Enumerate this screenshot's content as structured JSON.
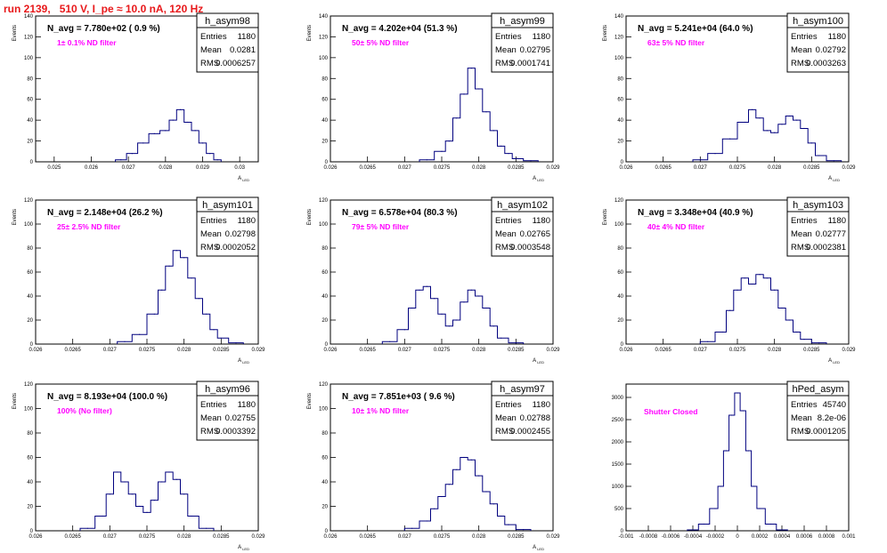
{
  "run_title": "run 2139,   510 V, I_pe ≈ 10.0 nA, 120 Hz",
  "colors": {
    "title": "#e8191b",
    "line": "#00007f",
    "annotation": "#ff00ff",
    "frame": "#000000"
  },
  "chart_data": [
    {
      "type": "histogram",
      "stats_title": "h_asym98",
      "stats": {
        "Entries": "1180",
        "Mean": "0.0281",
        "RMS": "0.0006257"
      },
      "navg_label": "N_avg = 7.780e+02 ( 0.9 %)",
      "filter_label": "1± 0.1% ND filter",
      "xlabel": "A",
      "xlabel_sub": "LED",
      "ylabel": "Events",
      "xlim": [
        0.0245,
        0.0305
      ],
      "ylim": [
        0,
        140
      ],
      "xticks": [
        "0.025",
        "0.026",
        "0.027",
        "0.028",
        "0.029",
        "0.03"
      ],
      "xtick_values": [
        0.025,
        0.026,
        0.027,
        0.028,
        0.029,
        0.03
      ],
      "yticks": [
        "0",
        "20",
        "40",
        "60",
        "80",
        "100",
        "120",
        "140"
      ],
      "ytick_values": [
        0,
        20,
        40,
        60,
        80,
        100,
        120,
        140
      ],
      "x": [
        0.0268,
        0.0271,
        0.0274,
        0.0277,
        0.028,
        0.0282,
        0.0284,
        0.0286,
        0.0288,
        0.029,
        0.0292,
        0.0294
      ],
      "y": [
        2,
        8,
        18,
        27,
        30,
        40,
        50,
        38,
        30,
        18,
        8,
        2
      ]
    },
    {
      "type": "histogram",
      "stats_title": "h_asym99",
      "stats": {
        "Entries": "1180",
        "Mean": "0.02795",
        "RMS": "0.0001741"
      },
      "navg_label": "N_avg = 4.202e+04 (51.3 %)",
      "filter_label": "50± 5% ND filter",
      "xlabel": "A",
      "xlabel_sub": "LED",
      "ylabel": "Events",
      "xlim": [
        0.026,
        0.029
      ],
      "ylim": [
        0,
        140
      ],
      "xticks": [
        "0.026",
        "0.0265",
        "0.027",
        "0.0275",
        "0.028",
        "0.0285",
        "0.029"
      ],
      "xtick_values": [
        0.026,
        0.0265,
        0.027,
        0.0275,
        0.028,
        0.0285,
        0.029
      ],
      "yticks": [
        "0",
        "20",
        "40",
        "60",
        "80",
        "100",
        "120",
        "140"
      ],
      "ytick_values": [
        0,
        20,
        40,
        60,
        80,
        100,
        120,
        140
      ],
      "x": [
        0.0273,
        0.0275,
        0.0276,
        0.0277,
        0.0278,
        0.0279,
        0.028,
        0.0281,
        0.0282,
        0.0283,
        0.0284,
        0.0285,
        0.0287
      ],
      "y": [
        2,
        10,
        20,
        42,
        65,
        90,
        70,
        48,
        30,
        15,
        8,
        3,
        1
      ]
    },
    {
      "type": "histogram",
      "stats_title": "h_asym100",
      "stats": {
        "Entries": "1180",
        "Mean": "0.02792",
        "RMS": "0.0003263"
      },
      "navg_label": "N_avg = 5.241e+04 (64.0 %)",
      "filter_label": "63± 5% ND filter",
      "xlabel": "A",
      "xlabel_sub": "LED",
      "ylabel": "Events",
      "xlim": [
        0.026,
        0.029
      ],
      "ylim": [
        0,
        140
      ],
      "xticks": [
        "0.026",
        "0.0265",
        "0.027",
        "0.0275",
        "0.028",
        "0.0285",
        "0.029"
      ],
      "xtick_values": [
        0.026,
        0.0265,
        0.027,
        0.0275,
        0.028,
        0.0285,
        0.029
      ],
      "yticks": [
        "0",
        "20",
        "40",
        "60",
        "80",
        "100",
        "120",
        "140"
      ],
      "ytick_values": [
        0,
        20,
        40,
        60,
        80,
        100,
        120,
        140
      ],
      "x": [
        0.027,
        0.0272,
        0.0274,
        0.0276,
        0.0277,
        0.0278,
        0.0279,
        0.028,
        0.0281,
        0.0282,
        0.0283,
        0.0284,
        0.0285,
        0.0286,
        0.0288
      ],
      "y": [
        2,
        8,
        22,
        38,
        50,
        42,
        30,
        28,
        36,
        44,
        40,
        32,
        18,
        6,
        1
      ]
    },
    {
      "type": "histogram",
      "stats_title": "h_asym101",
      "stats": {
        "Entries": "1180",
        "Mean": "0.02798",
        "RMS": "0.0002052"
      },
      "navg_label": "N_avg = 2.148e+04 (26.2 %)",
      "filter_label": "25± 2.5% ND filter",
      "xlabel": "A",
      "xlabel_sub": "LED",
      "ylabel": "Events",
      "xlim": [
        0.026,
        0.029
      ],
      "ylim": [
        0,
        120
      ],
      "xticks": [
        "0.026",
        "0.0265",
        "0.027",
        "0.0275",
        "0.028",
        "0.0285",
        "0.029"
      ],
      "xtick_values": [
        0.026,
        0.0265,
        0.027,
        0.0275,
        0.028,
        0.0285,
        0.029
      ],
      "yticks": [
        "0",
        "20",
        "40",
        "60",
        "80",
        "100",
        "120"
      ],
      "ytick_values": [
        0,
        20,
        40,
        60,
        80,
        100,
        120
      ],
      "x": [
        0.0272,
        0.0274,
        0.0276,
        0.0277,
        0.0278,
        0.0279,
        0.028,
        0.0281,
        0.0282,
        0.0283,
        0.0284,
        0.0285,
        0.0287
      ],
      "y": [
        2,
        8,
        25,
        45,
        65,
        78,
        72,
        55,
        38,
        25,
        12,
        5,
        1
      ]
    },
    {
      "type": "histogram",
      "stats_title": "h_asym102",
      "stats": {
        "Entries": "1180",
        "Mean": "0.02765",
        "RMS": "0.0003548"
      },
      "navg_label": "N_avg = 6.578e+04 (80.3 %)",
      "filter_label": "79± 5% ND filter",
      "xlabel": "A",
      "xlabel_sub": "LED",
      "ylabel": "Events",
      "xlim": [
        0.026,
        0.029
      ],
      "ylim": [
        0,
        120
      ],
      "xticks": [
        "0.026",
        "0.0265",
        "0.027",
        "0.0275",
        "0.028",
        "0.0285",
        "0.029"
      ],
      "xtick_values": [
        0.026,
        0.0265,
        0.027,
        0.0275,
        0.028,
        0.0285,
        0.029
      ],
      "yticks": [
        "0",
        "20",
        "40",
        "60",
        "80",
        "100",
        "120"
      ],
      "ytick_values": [
        0,
        20,
        40,
        60,
        80,
        100,
        120
      ],
      "x": [
        0.0268,
        0.027,
        0.0271,
        0.0272,
        0.0273,
        0.0274,
        0.0275,
        0.0276,
        0.0277,
        0.0278,
        0.0279,
        0.028,
        0.0281,
        0.0282,
        0.0283,
        0.0285
      ],
      "y": [
        2,
        12,
        30,
        45,
        48,
        38,
        25,
        15,
        20,
        35,
        45,
        40,
        30,
        15,
        5,
        1
      ]
    },
    {
      "type": "histogram",
      "stats_title": "h_asym103",
      "stats": {
        "Entries": "1180",
        "Mean": "0.02777",
        "RMS": "0.0002381"
      },
      "navg_label": "N_avg = 3.348e+04 (40.9 %)",
      "filter_label": "40± 4% ND filter",
      "xlabel": "A",
      "xlabel_sub": "LED",
      "ylabel": "Events",
      "xlim": [
        0.026,
        0.029
      ],
      "ylim": [
        0,
        120
      ],
      "xticks": [
        "0.026",
        "0.0265",
        "0.027",
        "0.0275",
        "0.028",
        "0.0285",
        "0.029"
      ],
      "xtick_values": [
        0.026,
        0.0265,
        0.027,
        0.0275,
        0.028,
        0.0285,
        0.029
      ],
      "yticks": [
        "0",
        "20",
        "40",
        "60",
        "80",
        "100",
        "120"
      ],
      "ytick_values": [
        0,
        20,
        40,
        60,
        80,
        100,
        120
      ],
      "x": [
        0.0271,
        0.0273,
        0.0274,
        0.0275,
        0.0276,
        0.0277,
        0.0278,
        0.0279,
        0.028,
        0.0281,
        0.0282,
        0.0283,
        0.0284,
        0.0286
      ],
      "y": [
        2,
        10,
        28,
        45,
        55,
        50,
        58,
        55,
        45,
        30,
        20,
        10,
        4,
        1
      ]
    },
    {
      "type": "histogram",
      "stats_title": "h_asym96",
      "stats": {
        "Entries": "1180",
        "Mean": "0.02755",
        "RMS": "0.0003392"
      },
      "navg_label": "N_avg = 8.193e+04 (100.0 %)",
      "filter_label": "100% (No filter)",
      "xlabel": "A",
      "xlabel_sub": "LED",
      "ylabel": "Events",
      "xlim": [
        0.026,
        0.029
      ],
      "ylim": [
        0,
        120
      ],
      "xticks": [
        "0.026",
        "0.0265",
        "0.027",
        "0.0275",
        "0.028",
        "0.0285",
        "0.029"
      ],
      "xtick_values": [
        0.026,
        0.0265,
        0.027,
        0.0275,
        0.028,
        0.0285,
        0.029
      ],
      "yticks": [
        "0",
        "20",
        "40",
        "60",
        "80",
        "100",
        "120"
      ],
      "ytick_values": [
        0,
        20,
        40,
        60,
        80,
        100,
        120
      ],
      "x": [
        0.0267,
        0.0269,
        0.027,
        0.0271,
        0.0272,
        0.0273,
        0.0274,
        0.0275,
        0.0276,
        0.0277,
        0.0278,
        0.0279,
        0.028,
        0.0281,
        0.0283
      ],
      "y": [
        2,
        12,
        30,
        48,
        40,
        30,
        20,
        15,
        25,
        40,
        48,
        42,
        30,
        12,
        2
      ]
    },
    {
      "type": "histogram",
      "stats_title": "h_asym97",
      "stats": {
        "Entries": "1180",
        "Mean": "0.02788",
        "RMS": "0.0002455"
      },
      "navg_label": "N_avg = 7.851e+03 ( 9.6 %)",
      "filter_label": "10± 1% ND filter",
      "xlabel": "A",
      "xlabel_sub": "LED",
      "ylabel": "Events",
      "xlim": [
        0.026,
        0.029
      ],
      "ylim": [
        0,
        120
      ],
      "xticks": [
        "0.026",
        "0.0265",
        "0.027",
        "0.0275",
        "0.028",
        "0.0285",
        "0.029"
      ],
      "xtick_values": [
        0.026,
        0.0265,
        0.027,
        0.0275,
        0.028,
        0.0285,
        0.029
      ],
      "yticks": [
        "0",
        "20",
        "40",
        "60",
        "80",
        "100",
        "120"
      ],
      "ytick_values": [
        0,
        20,
        40,
        60,
        80,
        100,
        120
      ],
      "x": [
        0.0271,
        0.0273,
        0.0274,
        0.0275,
        0.0276,
        0.0277,
        0.0278,
        0.0279,
        0.028,
        0.0281,
        0.0282,
        0.0283,
        0.0284,
        0.0286
      ],
      "y": [
        2,
        8,
        18,
        28,
        38,
        50,
        60,
        58,
        45,
        32,
        22,
        12,
        5,
        1
      ]
    },
    {
      "type": "histogram",
      "stats_title": "hPed_asym",
      "stats": {
        "Entries": "45740",
        "Mean": "8.2e-06",
        "RMS": "0.0001205"
      },
      "navg_label": "",
      "filter_label": "Shutter Closed",
      "xlabel": "",
      "xlabel_sub": "",
      "ylabel": "",
      "xlim": [
        -0.001,
        0.001
      ],
      "ylim": [
        0,
        3300
      ],
      "xticks": [
        "-0.001",
        "-0.0008",
        "-0.0006",
        "-0.0004",
        "-0.0002",
        "0",
        "0.0002",
        "0.0004",
        "0.0006",
        "0.0008",
        "0.001"
      ],
      "xtick_values": [
        -0.001,
        -0.0008,
        -0.0006,
        -0.0004,
        -0.0002,
        0,
        0.0002,
        0.0004,
        0.0006,
        0.0008,
        0.001
      ],
      "yticks": [
        "0",
        "500",
        "1000",
        "1500",
        "2000",
        "2500",
        "3000"
      ],
      "ytick_values": [
        0,
        500,
        1000,
        1500,
        2000,
        2500,
        3000
      ],
      "x": [
        -0.0004,
        -0.0003,
        -0.0002,
        -0.00015,
        -0.0001,
        -5e-05,
        0,
        5e-05,
        0.0001,
        0.00015,
        0.0002,
        0.0003,
        0.0004
      ],
      "y": [
        20,
        150,
        500,
        1000,
        1800,
        2600,
        3100,
        2700,
        1800,
        1000,
        500,
        150,
        20
      ]
    }
  ]
}
